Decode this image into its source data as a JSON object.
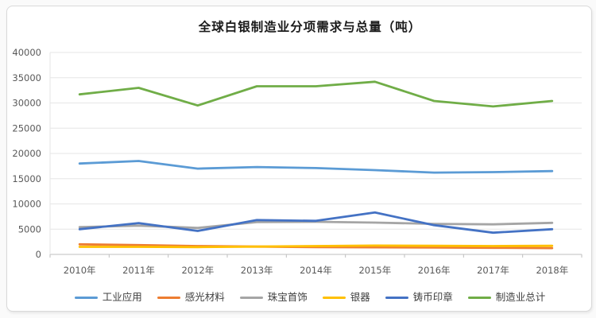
{
  "page": {
    "background_color": "#fafafa",
    "card_background": "#ffffff",
    "card_border_color": "#d9d9d9",
    "gridline_color": "#e6e6e6",
    "axis_color": "#bfbfbf",
    "tick_label_color": "#595959"
  },
  "chart_data": {
    "type": "line",
    "title": "全球白银制造业分项需求与总量（吨）",
    "categories": [
      "2010年",
      "2011年",
      "2012年",
      "2013年",
      "2014年",
      "2015年",
      "2016年",
      "2017年",
      "2018年"
    ],
    "series": [
      {
        "name": "工业应用",
        "color": "#5B9BD5",
        "values": [
          18000,
          18500,
          17000,
          17300,
          17100,
          16700,
          16200,
          16300,
          16500
        ]
      },
      {
        "name": "感光材料",
        "color": "#ED7D31",
        "values": [
          2000,
          1850,
          1650,
          1550,
          1450,
          1400,
          1350,
          1300,
          1250
        ]
      },
      {
        "name": "珠宝首饰",
        "color": "#A5A5A5",
        "values": [
          5400,
          5700,
          5250,
          6400,
          6450,
          6300,
          6050,
          5950,
          6250
        ]
      },
      {
        "name": "银器",
        "color": "#FFC000",
        "values": [
          1500,
          1500,
          1450,
          1550,
          1650,
          1750,
          1700,
          1650,
          1700
        ]
      },
      {
        "name": "铸币印章",
        "color": "#4472C4",
        "values": [
          5000,
          6200,
          4650,
          6800,
          6650,
          8300,
          5800,
          4300,
          5000
        ]
      },
      {
        "name": "制造业总计",
        "color": "#70AD47",
        "values": [
          31700,
          33000,
          29500,
          33300,
          33300,
          34200,
          30400,
          29300,
          30400
        ]
      }
    ],
    "xlabel": "",
    "ylabel": "",
    "ylim": [
      0,
      40000
    ],
    "ytick_step": 5000,
    "grid": "horizontal",
    "legend_position": "bottom"
  }
}
